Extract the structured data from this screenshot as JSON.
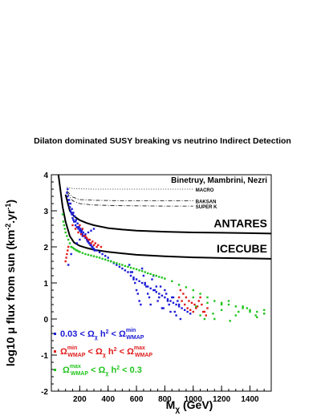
{
  "page_title": "Dilaton dominated SUSY breaking vs neutrino Indirect Detection",
  "chart_data": {
    "type": "scatter",
    "authors": "Binetruy, Mambrini, Nezri",
    "xlabel": "M_χ (GeV)",
    "ylabel": "log10 μ flux from sun (km⁻² yr⁻¹)",
    "xlim": [
      0,
      1550
    ],
    "ylim": [
      -2,
      4
    ],
    "xticks": [
      200,
      400,
      600,
      800,
      1000,
      1200,
      1400
    ],
    "yticks": [
      -2,
      -1,
      0,
      1,
      2,
      3,
      4
    ],
    "grid": false,
    "legend_position": "bottom-left",
    "legend": [
      {
        "label": "0.03 < Ω_χ h² < Ω_WMAP^min",
        "color": "#1a1ad6"
      },
      {
        "label": "Ω_WMAP^min < Ω_χ h² < Ω_WMAP^max",
        "color": "#e01a1a"
      },
      {
        "label": "Ω_WMAP^max < Ω_χ h² < 0.3",
        "color": "#22c41e"
      }
    ],
    "limit_curves": [
      {
        "name": "MACRO",
        "style": "dotted",
        "x": [
          110,
          150,
          200,
          300,
          500,
          800,
          1000
        ],
        "y": [
          3.65,
          3.62,
          3.61,
          3.6,
          3.6,
          3.6,
          3.6
        ]
      },
      {
        "name": "BAKSAN",
        "style": "dashdot",
        "x": [
          110,
          150,
          200,
          300,
          500,
          800,
          1000
        ],
        "y": [
          3.55,
          3.38,
          3.31,
          3.29,
          3.28,
          3.28,
          3.28
        ]
      },
      {
        "name": "SUPER K",
        "style": "dashdot",
        "x": [
          110,
          150,
          200,
          300,
          500,
          800,
          1000
        ],
        "y": [
          3.5,
          3.28,
          3.2,
          3.16,
          3.14,
          3.13,
          3.13
        ]
      },
      {
        "name": "ANTARES",
        "style": "solid-thick",
        "x": [
          100,
          130,
          160,
          200,
          250,
          300,
          400,
          500,
          600,
          800,
          1000,
          1200,
          1400,
          1550
        ],
        "y": [
          3.45,
          3.0,
          2.85,
          2.74,
          2.66,
          2.6,
          2.52,
          2.48,
          2.45,
          2.42,
          2.4,
          2.39,
          2.38,
          2.37
        ]
      },
      {
        "name": "ICECUBE",
        "style": "solid-thick",
        "x": [
          50,
          80,
          100,
          130,
          160,
          200,
          250,
          300,
          400,
          500,
          600,
          800,
          1000,
          1200,
          1400,
          1550
        ],
        "y": [
          4.0,
          3.1,
          2.7,
          2.3,
          2.12,
          2.03,
          1.97,
          1.92,
          1.86,
          1.82,
          1.78,
          1.74,
          1.71,
          1.69,
          1.68,
          1.67
        ]
      }
    ],
    "series": [
      {
        "name": "0.03 < Ω_χ h² < Ω_WMAP^min",
        "color": "#1a1ad6",
        "x": [
          110,
          115,
          120,
          125,
          130,
          135,
          140,
          145,
          150,
          155,
          160,
          170,
          180,
          190,
          200,
          210,
          220,
          230,
          240,
          250,
          260,
          270,
          280,
          290,
          300,
          320,
          340,
          360,
          380,
          400,
          420,
          440,
          460,
          480,
          500,
          520,
          540,
          560,
          580,
          600,
          620,
          640,
          660,
          680,
          700,
          720,
          740,
          760,
          780,
          800,
          820,
          840,
          860,
          880,
          900,
          920,
          940,
          960,
          980,
          115,
          125,
          135,
          145,
          155,
          165,
          175,
          185,
          195,
          205,
          215,
          225,
          235,
          245,
          255,
          265,
          275,
          285,
          295,
          305,
          120,
          140,
          160,
          180,
          200,
          220,
          240,
          260,
          280,
          300,
          550,
          570,
          590,
          610,
          630,
          650,
          670,
          690,
          710,
          730,
          750,
          770,
          790,
          810,
          830,
          850,
          870,
          890,
          910,
          560,
          580,
          600,
          620,
          640,
          660,
          680,
          700,
          720,
          740,
          760,
          780,
          800,
          820,
          840,
          860,
          880,
          900,
          130,
          150,
          170,
          190,
          210
        ],
        "y": [
          3.5,
          3.4,
          3.3,
          3.2,
          3.1,
          3.0,
          2.95,
          2.9,
          2.8,
          2.75,
          2.7,
          2.6,
          2.55,
          2.5,
          2.45,
          2.4,
          2.35,
          2.3,
          2.25,
          2.2,
          2.15,
          2.1,
          2.05,
          2.0,
          1.95,
          1.9,
          1.85,
          1.8,
          1.75,
          1.7,
          1.6,
          1.55,
          1.5,
          1.45,
          1.4,
          1.35,
          1.3,
          1.2,
          1.15,
          1.1,
          1.05,
          1.0,
          0.95,
          0.9,
          0.85,
          0.8,
          0.75,
          0.7,
          0.65,
          0.6,
          0.55,
          0.5,
          0.45,
          0.4,
          0.35,
          0.3,
          0.25,
          0.2,
          0.15,
          3.6,
          3.3,
          3.2,
          3.05,
          2.95,
          2.85,
          2.75,
          2.65,
          2.55,
          2.5,
          2.45,
          2.4,
          2.3,
          2.25,
          2.15,
          2.1,
          2.05,
          2.0,
          1.95,
          1.9,
          1.5,
          1.8,
          1.95,
          2.1,
          2.2,
          2.3,
          2.35,
          2.4,
          2.45,
          2.5,
          1.5,
          1.3,
          1.0,
          0.7,
          0.4,
          1.2,
          0.9,
          0.6,
          1.1,
          0.8,
          0.5,
          0.9,
          0.3,
          0.7,
          0.4,
          0.6,
          0.2,
          0.5,
          0.0,
          1.3,
          1.1,
          0.8,
          0.5,
          1.4,
          1.0,
          0.7,
          0.4,
          1.2,
          0.9,
          0.6,
          0.3,
          0.8,
          0.5,
          0.2,
          0.6,
          0.1,
          0.4,
          3.1,
          2.9,
          2.7,
          2.55,
          2.45
        ]
      },
      {
        "name": "Ω_WMAP^min < Ω_χ h² < Ω_WMAP^max",
        "color": "#e01a1a",
        "x": [
          100,
          105,
          110,
          115,
          120,
          150,
          170,
          190,
          210,
          230,
          250,
          270,
          290,
          310,
          330,
          350,
          200,
          220,
          240,
          260,
          280,
          300,
          320,
          900,
          920,
          940,
          960,
          980,
          1000,
          1020,
          1040,
          1060,
          1080,
          1100,
          910,
          930,
          950,
          970,
          990,
          1010,
          1030,
          1050,
          1070,
          1090
        ],
        "y": [
          1.6,
          1.7,
          1.8,
          1.9,
          2.0,
          2.6,
          2.5,
          2.4,
          2.35,
          2.3,
          2.25,
          2.2,
          2.15,
          2.1,
          2.05,
          2.0,
          2.6,
          2.5,
          2.3,
          2.2,
          2.1,
          2.05,
          2.0,
          0.6,
          0.5,
          0.4,
          0.3,
          0.25,
          0.2,
          0.3,
          0.5,
          0.4,
          0.2,
          0.3,
          0.8,
          0.7,
          0.6,
          0.5,
          0.45,
          0.4,
          0.35,
          0.6,
          0.2,
          0.1
        ]
      },
      {
        "name": "Ω_WMAP^max < Ω_χ h² < 0.3",
        "color": "#22c41e",
        "x": [
          80,
          85,
          90,
          95,
          100,
          110,
          120,
          130,
          140,
          150,
          160,
          170,
          180,
          190,
          200,
          220,
          240,
          260,
          280,
          300,
          320,
          340,
          360,
          380,
          400,
          420,
          440,
          460,
          480,
          500,
          520,
          540,
          560,
          580,
          600,
          620,
          640,
          660,
          680,
          700,
          720,
          740,
          760,
          780,
          800,
          850,
          900,
          950,
          1000,
          1050,
          1100,
          1150,
          1200,
          1250,
          1300,
          1350,
          1400,
          1450,
          1500,
          1000,
          1050,
          1100,
          1150,
          1200,
          1250,
          1300,
          1350,
          1400,
          1450,
          1500,
          1020,
          1080,
          1140,
          1200,
          1260,
          1320,
          1380,
          1440,
          1500
        ],
        "y": [
          2.9,
          2.7,
          2.6,
          2.5,
          2.4,
          2.3,
          2.2,
          2.1,
          2.0,
          1.98,
          1.95,
          1.92,
          1.9,
          1.88,
          1.86,
          1.83,
          1.8,
          1.78,
          1.76,
          1.74,
          1.72,
          1.7,
          1.67,
          1.65,
          1.62,
          1.6,
          1.57,
          1.55,
          1.52,
          1.5,
          1.47,
          1.45,
          1.42,
          1.4,
          1.38,
          1.35,
          1.33,
          1.3,
          1.27,
          1.25,
          1.22,
          1.2,
          1.17,
          1.15,
          1.12,
          1.05,
          0.95,
          0.88,
          0.8,
          0.7,
          0.6,
          0.5,
          0.45,
          0.4,
          0.35,
          0.3,
          0.25,
          0.2,
          0.15,
          0.6,
          0.1,
          0.45,
          0.0,
          0.25,
          0.5,
          0.1,
          0.35,
          0.2,
          0.05,
          0.25,
          0.35,
          0.0,
          0.15,
          0.4,
          -0.05,
          0.2,
          0.3,
          0.1,
          0.15
        ]
      }
    ]
  }
}
